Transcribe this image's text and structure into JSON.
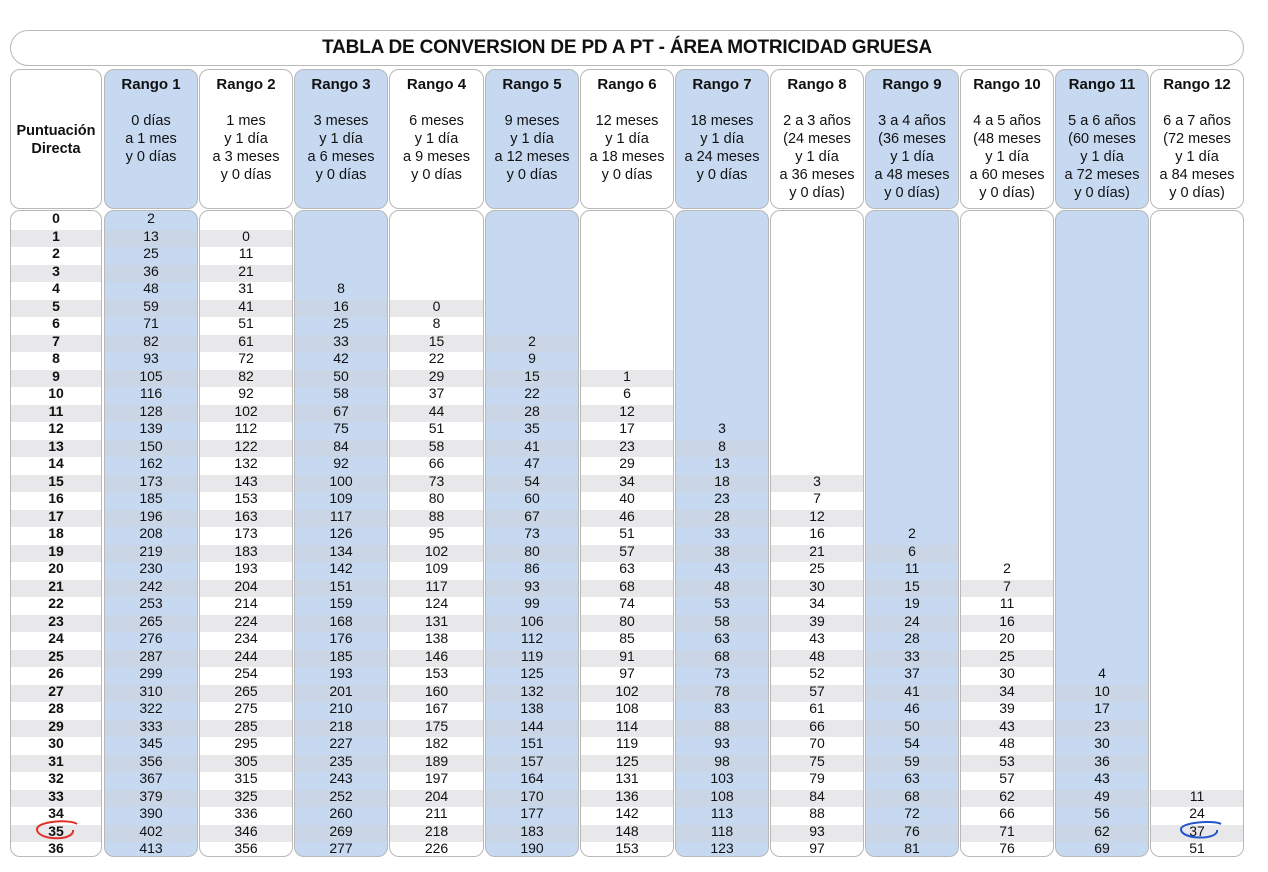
{
  "title": "TABLA DE CONVERSION DE PD A PT - ÁREA MOTRICIDAD GRUESA",
  "pd_header": "Puntuación\nDirecta",
  "pd_values": [
    "0",
    "1",
    "2",
    "3",
    "4",
    "5",
    "6",
    "7",
    "8",
    "9",
    "10",
    "11",
    "12",
    "13",
    "14",
    "15",
    "16",
    "17",
    "18",
    "19",
    "20",
    "21",
    "22",
    "23",
    "24",
    "25",
    "26",
    "27",
    "28",
    "29",
    "30",
    "31",
    "32",
    "33",
    "34",
    "35",
    "36"
  ],
  "columns": [
    {
      "rango": "Rango 1",
      "desc": "0 días\na 1 mes\ny 0 días",
      "start": 0,
      "values": [
        "2",
        "13",
        "25",
        "36",
        "48",
        "59",
        "71",
        "82",
        "93",
        "105",
        "116",
        "128",
        "139",
        "150",
        "162",
        "173",
        "185",
        "196",
        "208",
        "219",
        "230",
        "242",
        "253",
        "265",
        "276",
        "287",
        "299",
        "310",
        "322",
        "333",
        "345",
        "356",
        "367",
        "379",
        "390",
        "402",
        "413"
      ]
    },
    {
      "rango": "Rango 2",
      "desc": "1 mes\ny 1 día\na 3 meses\ny 0 días",
      "start": 1,
      "values": [
        "0",
        "11",
        "21",
        "31",
        "41",
        "51",
        "61",
        "72",
        "82",
        "92",
        "102",
        "112",
        "122",
        "132",
        "143",
        "153",
        "163",
        "173",
        "183",
        "193",
        "204",
        "214",
        "224",
        "234",
        "244",
        "254",
        "265",
        "275",
        "285",
        "295",
        "305",
        "315",
        "325",
        "336",
        "346",
        "356"
      ]
    },
    {
      "rango": "Rango 3",
      "desc": "3 meses\ny 1 día\na 6 meses\ny 0 días",
      "start": 4,
      "values": [
        "8",
        "16",
        "25",
        "33",
        "42",
        "50",
        "58",
        "67",
        "75",
        "84",
        "92",
        "100",
        "109",
        "117",
        "126",
        "134",
        "142",
        "151",
        "159",
        "168",
        "176",
        "185",
        "193",
        "201",
        "210",
        "218",
        "227",
        "235",
        "243",
        "252",
        "260",
        "269",
        "277"
      ]
    },
    {
      "rango": "Rango 4",
      "desc": "6 meses\ny 1 día\na 9 meses\ny 0 días",
      "start": 5,
      "values": [
        "0",
        "8",
        "15",
        "22",
        "29",
        "37",
        "44",
        "51",
        "58",
        "66",
        "73",
        "80",
        "88",
        "95",
        "102",
        "109",
        "117",
        "124",
        "131",
        "138",
        "146",
        "153",
        "160",
        "167",
        "175",
        "182",
        "189",
        "197",
        "204",
        "211",
        "218",
        "226"
      ]
    },
    {
      "rango": "Rango 5",
      "desc": "9 meses\ny 1 día\na 12 meses\ny 0 días",
      "start": 7,
      "values": [
        "2",
        "9",
        "15",
        "22",
        "28",
        "35",
        "41",
        "47",
        "54",
        "60",
        "67",
        "73",
        "80",
        "86",
        "93",
        "99",
        "106",
        "112",
        "119",
        "125",
        "132",
        "138",
        "144",
        "151",
        "157",
        "164",
        "170",
        "177",
        "183",
        "190"
      ]
    },
    {
      "rango": "Rango 6",
      "desc": "12 meses\ny 1 día\na 18 meses\ny 0 días",
      "start": 9,
      "values": [
        "1",
        "6",
        "12",
        "17",
        "23",
        "29",
        "34",
        "40",
        "46",
        "51",
        "57",
        "63",
        "68",
        "74",
        "80",
        "85",
        "91",
        "97",
        "102",
        "108",
        "114",
        "119",
        "125",
        "131",
        "136",
        "142",
        "148",
        "153"
      ]
    },
    {
      "rango": "Rango 7",
      "desc": "18 meses\ny 1 día\na 24 meses\ny 0 días",
      "start": 12,
      "values": [
        "3",
        "8",
        "13",
        "18",
        "23",
        "28",
        "33",
        "38",
        "43",
        "48",
        "53",
        "58",
        "63",
        "68",
        "73",
        "78",
        "83",
        "88",
        "93",
        "98",
        "103",
        "108",
        "113",
        "118",
        "123"
      ]
    },
    {
      "rango": "Rango 8",
      "desc": "2 a 3 años\n(24 meses\ny 1 día\na 36 meses\ny 0 días)",
      "start": 15,
      "values": [
        "3",
        "7",
        "12",
        "16",
        "21",
        "25",
        "30",
        "34",
        "39",
        "43",
        "48",
        "52",
        "57",
        "61",
        "66",
        "70",
        "75",
        "79",
        "84",
        "88",
        "93",
        "97"
      ]
    },
    {
      "rango": "Rango 9",
      "desc": "3 a 4 años\n(36 meses\ny 1 día\na 48 meses\ny 0 días)",
      "start": 18,
      "values": [
        "2",
        "6",
        "11",
        "15",
        "19",
        "24",
        "28",
        "33",
        "37",
        "41",
        "46",
        "50",
        "54",
        "59",
        "63",
        "68",
        "72",
        "76",
        "81"
      ]
    },
    {
      "rango": "Rango 10",
      "desc": "4 a 5 años\n(48 meses\ny 1 día\na 60 meses\ny 0 días)",
      "start": 20,
      "values": [
        "2",
        "7",
        "11",
        "16",
        "20",
        "25",
        "30",
        "34",
        "39",
        "43",
        "48",
        "53",
        "57",
        "62",
        "66",
        "71",
        "76"
      ]
    },
    {
      "rango": "Rango 11",
      "desc": "5 a 6 años\n(60 meses\ny 1 día\na 72 meses\ny 0 días)",
      "start": 26,
      "values": [
        "4",
        "10",
        "17",
        "23",
        "30",
        "36",
        "43",
        "49",
        "56",
        "62",
        "69"
      ]
    },
    {
      "rango": "Rango 12",
      "desc": "6 a 7 años\n(72 meses\ny 1 día\na 84 meses\ny 0 días)",
      "start": 33,
      "values": [
        "11",
        "24",
        "37",
        "51"
      ]
    }
  ],
  "annotations": {
    "pd_circle_color": "#e0302a",
    "value_circle_color": "#2255cc"
  }
}
